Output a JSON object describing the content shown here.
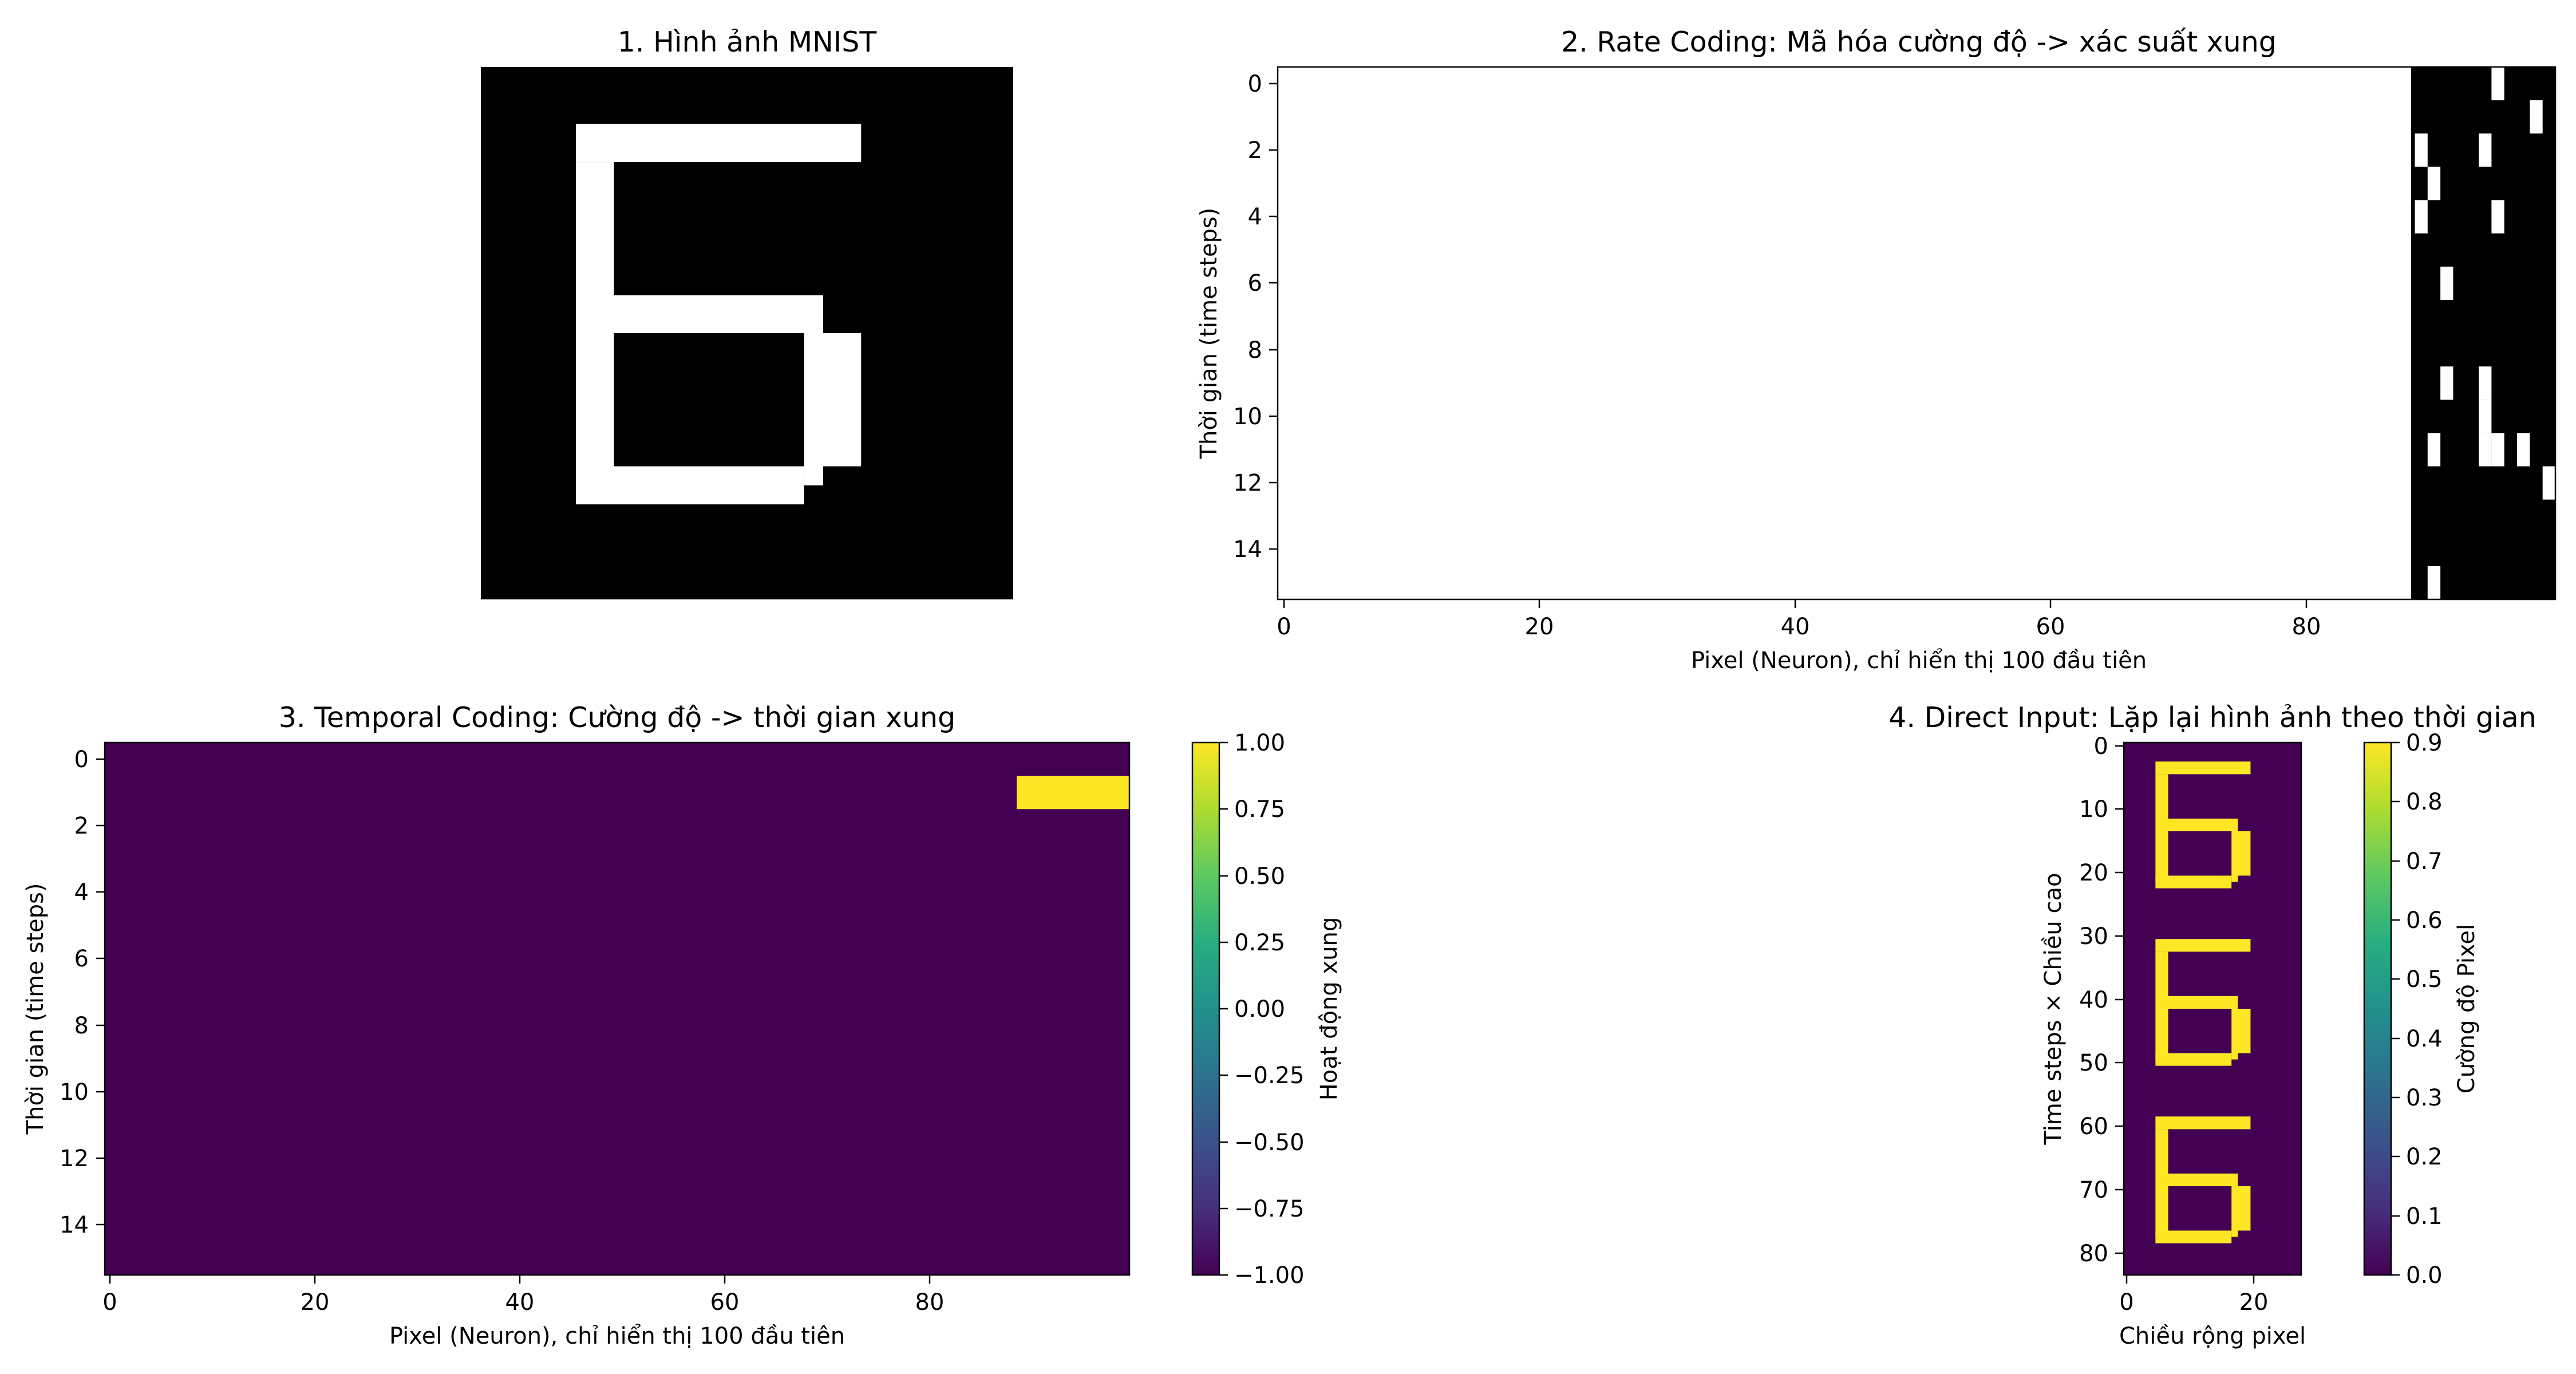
{
  "colors": {
    "viridis_low": "#440154",
    "viridis_mid": "#21918c",
    "viridis_high": "#fde725",
    "binary_on": "#ffffff",
    "binary_off": "#000000"
  },
  "chart_data": [
    {
      "id": "mnist-image",
      "type": "heatmap",
      "title": "1. Hình ảnh MNIST",
      "colormap": "gray",
      "axes_visible": false,
      "grid": false,
      "rows": 28,
      "cols": 28,
      "on_segments": [
        {
          "rows": [
            3,
            4
          ],
          "cols": [
            5,
            19
          ]
        },
        {
          "rows": [
            5,
            13
          ],
          "cols": [
            5,
            6
          ]
        },
        {
          "rows": [
            12,
            13
          ],
          "cols": [
            7,
            17
          ]
        },
        {
          "rows": [
            14,
            20
          ],
          "cols": [
            17,
            19
          ]
        },
        {
          "rows": [
            21,
            21
          ],
          "cols": [
            17,
            17
          ]
        },
        {
          "rows": [
            14,
            21
          ],
          "cols": [
            5,
            6
          ]
        },
        {
          "rows": [
            21,
            22
          ],
          "cols": [
            5,
            16
          ]
        }
      ]
    },
    {
      "id": "rate-coding",
      "type": "heatmap",
      "title": "2. Rate Coding: Mã hóa cường độ -> xác suất xung",
      "xlabel": "Pixel (Neuron), chỉ hiển thị 100 đầu tiên",
      "ylabel": "Thời gian (time steps)",
      "colormap": "gray",
      "grid": false,
      "xlim": [
        -0.5,
        99.5
      ],
      "ylim": [
        15.5,
        -0.5
      ],
      "xticks": [
        "0",
        "20",
        "40",
        "60",
        "80"
      ],
      "yticks": [
        "0",
        "2",
        "4",
        "6",
        "8",
        "10",
        "12",
        "14"
      ],
      "time_steps": 16,
      "neurons_shown": 100,
      "spikes": [
        [
          0,
          95
        ],
        [
          1,
          98
        ],
        [
          2,
          89
        ],
        [
          2,
          94
        ],
        [
          3,
          90
        ],
        [
          4,
          89
        ],
        [
          4,
          95
        ],
        [
          6,
          91
        ],
        [
          9,
          91
        ],
        [
          9,
          94
        ],
        [
          10,
          94
        ],
        [
          11,
          90
        ],
        [
          11,
          94
        ],
        [
          11,
          95
        ],
        [
          11,
          97
        ],
        [
          12,
          99
        ],
        [
          15,
          90
        ]
      ]
    },
    {
      "id": "temporal-coding",
      "type": "heatmap",
      "title": "3. Temporal Coding: Cường độ -> thời gian xung",
      "xlabel": "Pixel (Neuron), chỉ hiển thị 100 đầu tiên",
      "ylabel": "Thời gian (time steps)",
      "colorbar_label": "Hoạt động xung",
      "colormap": "viridis",
      "grid": false,
      "xlim": [
        -0.5,
        99.5
      ],
      "ylim": [
        15.5,
        -0.5
      ],
      "xticks": [
        "0",
        "20",
        "40",
        "60",
        "80"
      ],
      "yticks": [
        "0",
        "2",
        "4",
        "6",
        "8",
        "10",
        "12",
        "14"
      ],
      "colorbar_ticks": [
        "1.00",
        "0.75",
        "0.50",
        "0.25",
        "0.00",
        "−0.25",
        "−0.50",
        "−0.75",
        "−1.00"
      ],
      "vmin": -1,
      "vmax": 1,
      "time_steps": 16,
      "neurons_shown": 100,
      "spikes": [
        {
          "row": 1,
          "cols": [
            89,
            99
          ],
          "value": 1
        }
      ]
    },
    {
      "id": "direct-input",
      "type": "heatmap",
      "title": "4. Direct Input: Lặp lại hình ảnh theo thời gian",
      "xlabel": "Chiều rộng pixel",
      "ylabel": "Time steps × Chiều cao",
      "colorbar_label": "Cường độ Pixel",
      "colormap": "viridis",
      "grid": false,
      "xlim": [
        -0.5,
        27.5
      ],
      "ylim": [
        83.5,
        -0.5
      ],
      "xticks": [
        "0",
        "20"
      ],
      "yticks": [
        "0",
        "10",
        "20",
        "30",
        "40",
        "50",
        "60",
        "70",
        "80"
      ],
      "colorbar_ticks": [
        "0.9",
        "0.8",
        "0.7",
        "0.6",
        "0.5",
        "0.4",
        "0.3",
        "0.2",
        "0.1",
        "0.0"
      ],
      "vmin": 0,
      "vmax": 0.9,
      "repeats": 3,
      "image_rows": 28,
      "image_cols": 28,
      "on_value": 0.9
    }
  ]
}
